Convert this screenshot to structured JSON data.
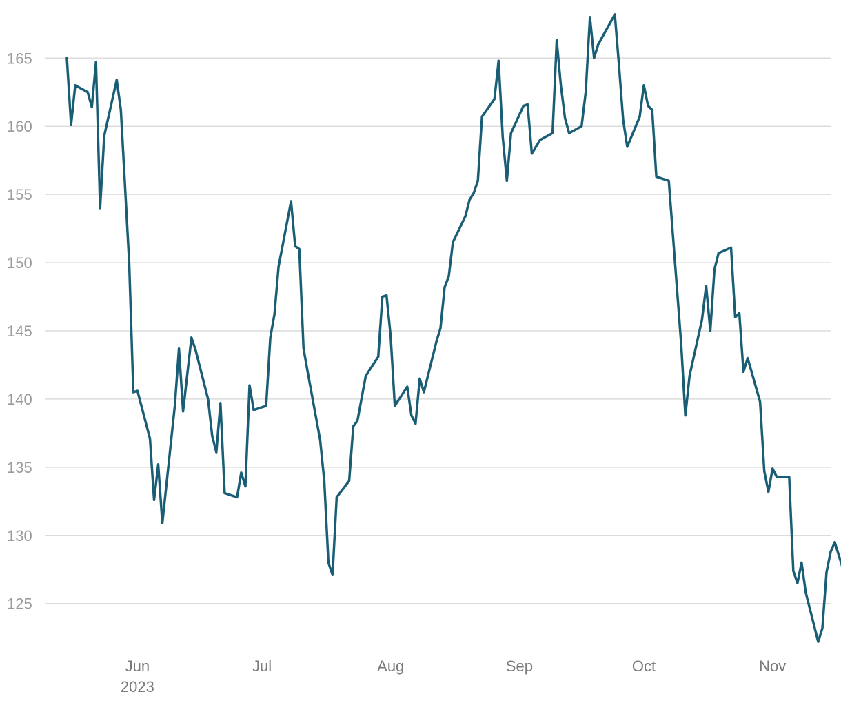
{
  "chart_data": {
    "type": "line",
    "title": "",
    "xlabel": "",
    "ylabel": "",
    "ylim": [
      121.5,
      168.5
    ],
    "xlim": [
      "2023-05-13",
      "2023-11-15"
    ],
    "grid": "horizontal",
    "y_ticks": [
      125,
      130,
      135,
      140,
      145,
      150,
      155,
      160,
      165
    ],
    "x_ticks": [
      {
        "date": "2023-06-01",
        "label": "Jun",
        "sublabel": "2023"
      },
      {
        "date": "2023-07-01",
        "label": "Jul",
        "sublabel": ""
      },
      {
        "date": "2023-08-01",
        "label": "Aug",
        "sublabel": ""
      },
      {
        "date": "2023-09-01",
        "label": "Sep",
        "sublabel": ""
      },
      {
        "date": "2023-10-01",
        "label": "Oct",
        "sublabel": ""
      },
      {
        "date": "2023-11-01",
        "label": "Nov",
        "sublabel": ""
      }
    ],
    "colors": {
      "line": "#1a5e76"
    },
    "series": [
      {
        "name": "",
        "points": [
          [
            "2023-05-15",
            165.0
          ],
          [
            "2023-05-16",
            160.1
          ],
          [
            "2023-05-17",
            163.0
          ],
          [
            "2023-05-20",
            162.5
          ],
          [
            "2023-05-21",
            161.4
          ],
          [
            "2023-05-22",
            164.7
          ],
          [
            "2023-05-23",
            154.0
          ],
          [
            "2023-05-24",
            159.3
          ],
          [
            "2023-05-27",
            163.4
          ],
          [
            "2023-05-28",
            161.2
          ],
          [
            "2023-05-30",
            150.0
          ],
          [
            "2023-05-31",
            140.5
          ],
          [
            "2023-06-01",
            140.6
          ],
          [
            "2023-06-04",
            137.1
          ],
          [
            "2023-06-05",
            132.6
          ],
          [
            "2023-06-06",
            135.2
          ],
          [
            "2023-06-07",
            130.9
          ],
          [
            "2023-06-10",
            139.5
          ],
          [
            "2023-06-11",
            143.7
          ],
          [
            "2023-06-12",
            139.1
          ],
          [
            "2023-06-14",
            144.5
          ],
          [
            "2023-06-15",
            143.6
          ],
          [
            "2023-06-18",
            140.0
          ],
          [
            "2023-06-19",
            137.3
          ],
          [
            "2023-06-20",
            136.1
          ],
          [
            "2023-06-21",
            139.7
          ],
          [
            "2023-06-22",
            133.1
          ],
          [
            "2023-06-25",
            132.8
          ],
          [
            "2023-06-26",
            134.6
          ],
          [
            "2023-06-27",
            133.6
          ],
          [
            "2023-06-28",
            141.0
          ],
          [
            "2023-06-29",
            139.2
          ],
          [
            "2023-07-02",
            139.5
          ],
          [
            "2023-07-03",
            144.5
          ],
          [
            "2023-07-04",
            146.2
          ],
          [
            "2023-07-05",
            149.7
          ],
          [
            "2023-07-08",
            154.5
          ],
          [
            "2023-07-09",
            151.2
          ],
          [
            "2023-07-10",
            151.0
          ],
          [
            "2023-07-11",
            143.7
          ],
          [
            "2023-07-12",
            142.0
          ],
          [
            "2023-07-15",
            137.0
          ],
          [
            "2023-07-16",
            134.0
          ],
          [
            "2023-07-17",
            128.0
          ],
          [
            "2023-07-18",
            127.1
          ],
          [
            "2023-07-19",
            132.8
          ],
          [
            "2023-07-22",
            134.0
          ],
          [
            "2023-07-23",
            138.0
          ],
          [
            "2023-07-24",
            138.4
          ],
          [
            "2023-07-26",
            141.7
          ],
          [
            "2023-07-29",
            143.1
          ],
          [
            "2023-07-30",
            147.5
          ],
          [
            "2023-07-31",
            147.6
          ],
          [
            "2023-08-01",
            144.6
          ],
          [
            "2023-08-02",
            139.5
          ],
          [
            "2023-08-05",
            140.9
          ],
          [
            "2023-08-06",
            138.8
          ],
          [
            "2023-08-07",
            138.2
          ],
          [
            "2023-08-08",
            141.5
          ],
          [
            "2023-08-09",
            140.5
          ],
          [
            "2023-08-12",
            144.2
          ],
          [
            "2023-08-13",
            145.2
          ],
          [
            "2023-08-14",
            148.2
          ],
          [
            "2023-08-15",
            149.0
          ],
          [
            "2023-08-16",
            151.5
          ],
          [
            "2023-08-19",
            153.4
          ],
          [
            "2023-08-20",
            154.6
          ],
          [
            "2023-08-21",
            155.1
          ],
          [
            "2023-08-22",
            156.0
          ],
          [
            "2023-08-23",
            160.7
          ],
          [
            "2023-08-26",
            162.0
          ],
          [
            "2023-08-27",
            164.8
          ],
          [
            "2023-08-28",
            159.2
          ],
          [
            "2023-08-29",
            156.0
          ],
          [
            "2023-08-30",
            159.5
          ],
          [
            "2023-09-02",
            161.5
          ],
          [
            "2023-09-03",
            161.6
          ],
          [
            "2023-09-04",
            158.0
          ],
          [
            "2023-09-06",
            159.0
          ],
          [
            "2023-09-09",
            159.5
          ],
          [
            "2023-09-10",
            166.3
          ],
          [
            "2023-09-11",
            163.0
          ],
          [
            "2023-09-12",
            160.6
          ],
          [
            "2023-09-13",
            159.5
          ],
          [
            "2023-09-16",
            160.0
          ],
          [
            "2023-09-17",
            162.5
          ],
          [
            "2023-09-18",
            168.0
          ],
          [
            "2023-09-19",
            165.0
          ],
          [
            "2023-09-20",
            166.0
          ],
          [
            "2023-09-24",
            168.2
          ],
          [
            "2023-09-25",
            164.5
          ],
          [
            "2023-09-26",
            160.5
          ],
          [
            "2023-09-27",
            158.5
          ],
          [
            "2023-09-30",
            160.7
          ],
          [
            "2023-10-01",
            163.0
          ],
          [
            "2023-10-02",
            161.5
          ],
          [
            "2023-10-03",
            161.2
          ],
          [
            "2023-10-04",
            156.3
          ],
          [
            "2023-10-07",
            156.0
          ],
          [
            "2023-10-10",
            144.0
          ],
          [
            "2023-10-11",
            138.8
          ],
          [
            "2023-10-12",
            141.7
          ],
          [
            "2023-10-15",
            145.8
          ],
          [
            "2023-10-16",
            148.3
          ],
          [
            "2023-10-17",
            145.0
          ],
          [
            "2023-10-18",
            149.5
          ],
          [
            "2023-10-19",
            150.7
          ],
          [
            "2023-10-22",
            151.1
          ],
          [
            "2023-10-23",
            146.0
          ],
          [
            "2023-10-24",
            146.3
          ],
          [
            "2023-10-25",
            142.0
          ],
          [
            "2023-10-26",
            143.0
          ],
          [
            "2023-10-29",
            139.8
          ],
          [
            "2023-10-30",
            134.7
          ],
          [
            "2023-10-31",
            133.2
          ],
          [
            "2023-11-01",
            134.9
          ],
          [
            "2023-11-02",
            134.3
          ],
          [
            "2023-11-05",
            134.3
          ],
          [
            "2023-11-06",
            127.4
          ],
          [
            "2023-11-07",
            126.5
          ],
          [
            "2023-11-08",
            128.0
          ],
          [
            "2023-11-09",
            125.8
          ],
          [
            "2023-11-12",
            122.2
          ],
          [
            "2023-11-13",
            123.2
          ],
          [
            "2023-11-14",
            127.3
          ],
          [
            "2023-11-15",
            128.8
          ],
          [
            "2023-11-16",
            129.5
          ],
          [
            "2023-11-19",
            126.5
          ]
        ]
      }
    ]
  }
}
